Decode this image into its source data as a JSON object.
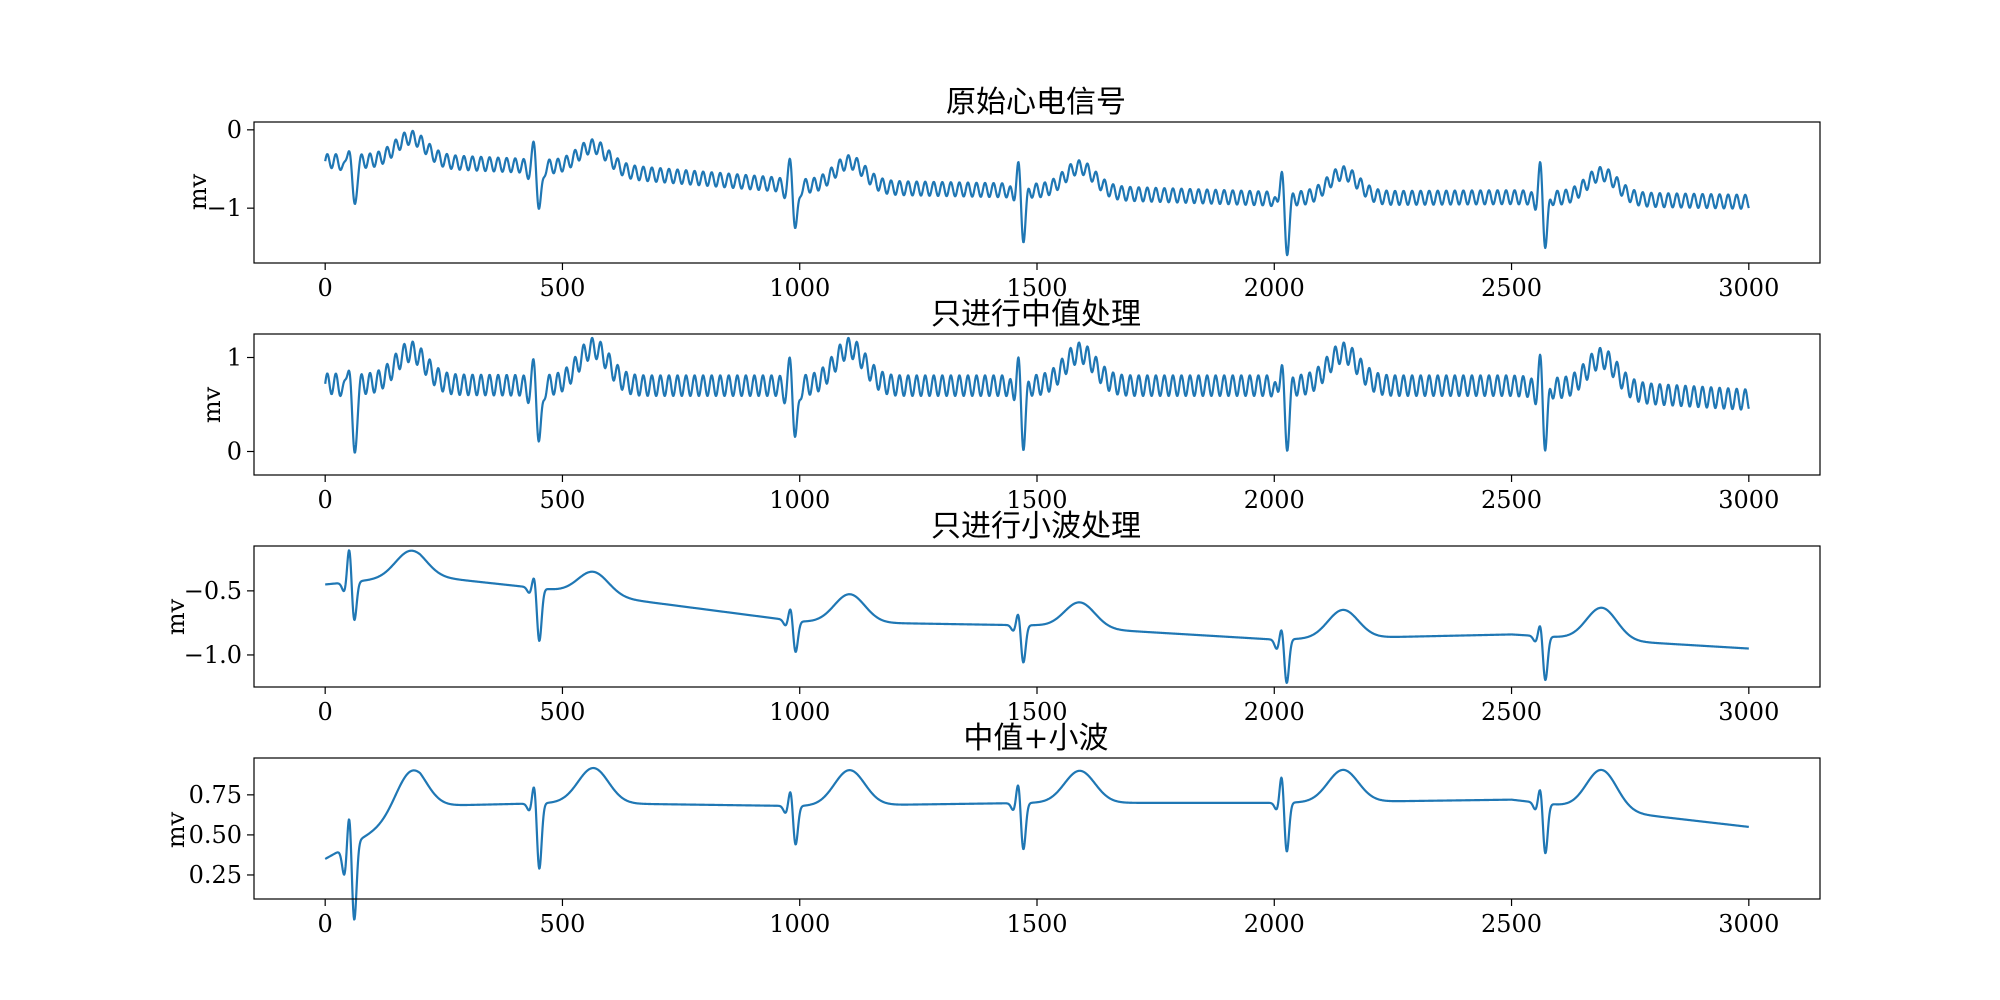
{
  "chart_data": [
    {
      "type": "line",
      "title": "原始心电信号",
      "xlabel": "",
      "ylabel": "mv",
      "xlim": [
        -150,
        3150
      ],
      "ylim": [
        -1.7,
        0.1
      ],
      "xticks": [
        0,
        500,
        1000,
        1500,
        2000,
        2500,
        3000
      ],
      "xtick_labels": [
        "0",
        "500",
        "1000",
        "1500",
        "2000",
        "2500",
        "3000"
      ],
      "yticks": [
        0,
        -1
      ],
      "ytick_labels": [
        "0",
        "−1"
      ],
      "grid": false,
      "line_color": "#1f77b4",
      "noise": {
        "amplitude": 0.09,
        "period": 18
      },
      "beats": [
        {
          "x": 55,
          "r": 0.3,
          "q": -0.12,
          "s": -0.6,
          "t": 0.3,
          "t_offset": 125
        },
        {
          "x": 445,
          "r": 0.35,
          "q": -0.1,
          "s": -0.6,
          "t": 0.3,
          "t_offset": 120
        },
        {
          "x": 985,
          "r": 0.38,
          "q": -0.1,
          "s": -0.6,
          "t": 0.32,
          "t_offset": 120
        },
        {
          "x": 1465,
          "r": 0.38,
          "q": -0.1,
          "s": -0.6,
          "t": 0.32,
          "t_offset": 125
        },
        {
          "x": 2020,
          "r": 0.45,
          "q": -0.1,
          "s": -0.7,
          "t": 0.32,
          "t_offset": 125
        },
        {
          "x": 2565,
          "r": 0.45,
          "q": -0.1,
          "s": -0.6,
          "t": 0.32,
          "t_offset": 125
        }
      ],
      "baseline": {
        "x": [
          0,
          200,
          500,
          1000,
          1500,
          2000,
          2500,
          3000
        ],
        "y": [
          -0.4,
          -0.4,
          -0.48,
          -0.72,
          -0.78,
          -0.88,
          -0.86,
          -0.92
        ]
      },
      "series": [
        {
          "x_start": 0,
          "x_end": 3000
        }
      ]
    },
    {
      "type": "line",
      "title": "只进行中值处理",
      "xlabel": "",
      "ylabel": "mv",
      "xlim": [
        -150,
        3150
      ],
      "ylim": [
        -0.25,
        1.25
      ],
      "xticks": [
        0,
        500,
        1000,
        1500,
        2000,
        2500,
        3000
      ],
      "xtick_labels": [
        "0",
        "500",
        "1000",
        "1500",
        "2000",
        "2500",
        "3000"
      ],
      "yticks": [
        1,
        0
      ],
      "ytick_labels": [
        "1",
        "0"
      ],
      "grid": false,
      "line_color": "#1f77b4",
      "noise": {
        "amplitude": 0.11,
        "period": 18
      },
      "beats": [
        {
          "x": 55,
          "r": 0.35,
          "q": -0.1,
          "s": -0.8,
          "t": 0.35,
          "t_offset": 125
        },
        {
          "x": 445,
          "r": 0.3,
          "q": -0.1,
          "s": -0.65,
          "t": 0.4,
          "t_offset": 120
        },
        {
          "x": 985,
          "r": 0.32,
          "q": -0.1,
          "s": -0.6,
          "t": 0.4,
          "t_offset": 120
        },
        {
          "x": 1465,
          "r": 0.3,
          "q": -0.1,
          "s": -0.6,
          "t": 0.35,
          "t_offset": 125
        },
        {
          "x": 2020,
          "r": 0.32,
          "q": -0.1,
          "s": -0.65,
          "t": 0.35,
          "t_offset": 125
        },
        {
          "x": 2565,
          "r": 0.32,
          "q": -0.1,
          "s": -0.6,
          "t": 0.35,
          "t_offset": 125
        }
      ],
      "baseline": {
        "x": [
          0,
          500,
          1000,
          1500,
          2000,
          2500,
          3000
        ],
        "y": [
          0.72,
          0.7,
          0.7,
          0.7,
          0.7,
          0.7,
          0.55
        ]
      },
      "series": [
        {
          "x_start": 0,
          "x_end": 3000
        }
      ]
    },
    {
      "type": "line",
      "title": "只进行小波处理",
      "xlabel": "",
      "ylabel": "mv",
      "xlim": [
        -150,
        3150
      ],
      "ylim": [
        -1.25,
        -0.15
      ],
      "xticks": [
        0,
        500,
        1000,
        1500,
        2000,
        2500,
        3000
      ],
      "xtick_labels": [
        "0",
        "500",
        "1000",
        "1500",
        "2000",
        "2500",
        "3000"
      ],
      "yticks": [
        -0.5,
        -1.0
      ],
      "ytick_labels": [
        "−0.5",
        "−1.0"
      ],
      "grid": false,
      "line_color": "#1f77b4",
      "noise": {
        "amplitude": 0.0,
        "period": 18
      },
      "beats": [
        {
          "x": 55,
          "r": 0.3,
          "q": -0.08,
          "s": -0.32,
          "t": 0.2,
          "t_offset": 125
        },
        {
          "x": 445,
          "r": 0.12,
          "q": -0.05,
          "s": -0.42,
          "t": 0.18,
          "t_offset": 120
        },
        {
          "x": 985,
          "r": 0.12,
          "q": -0.05,
          "s": -0.25,
          "t": 0.22,
          "t_offset": 120
        },
        {
          "x": 1465,
          "r": 0.12,
          "q": -0.05,
          "s": -0.3,
          "t": 0.2,
          "t_offset": 125
        },
        {
          "x": 2020,
          "r": 0.12,
          "q": -0.08,
          "s": -0.35,
          "t": 0.22,
          "t_offset": 125
        },
        {
          "x": 2565,
          "r": 0.12,
          "q": -0.05,
          "s": -0.35,
          "t": 0.25,
          "t_offset": 125
        }
      ],
      "baseline": {
        "x": [
          0,
          200,
          500,
          1000,
          1500,
          2000,
          2500,
          3000
        ],
        "y": [
          -0.45,
          -0.38,
          -0.5,
          -0.74,
          -0.77,
          -0.88,
          -0.84,
          -0.95
        ]
      },
      "series": [
        {
          "x_start": 0,
          "x_end": 3000
        }
      ]
    },
    {
      "type": "line",
      "title": "中值+小波",
      "xlabel": "",
      "ylabel": "mv",
      "xlim": [
        -150,
        3150
      ],
      "ylim": [
        0.1,
        0.98
      ],
      "xticks": [
        0,
        500,
        1000,
        1500,
        2000,
        2500,
        3000
      ],
      "xtick_labels": [
        "0",
        "500",
        "1000",
        "1500",
        "2000",
        "2500",
        "3000"
      ],
      "yticks": [
        0.75,
        0.5,
        0.25
      ],
      "ytick_labels": [
        "0.75",
        "0.50",
        "0.25"
      ],
      "grid": false,
      "line_color": "#1f77b4",
      "noise": {
        "amplitude": 0.0,
        "period": 18
      },
      "beats": [
        {
          "x": 55,
          "r": 0.25,
          "q": -0.18,
          "s": -0.5,
          "t": 0.25,
          "t_offset": 125
        },
        {
          "x": 445,
          "r": 0.15,
          "q": -0.05,
          "s": -0.42,
          "t": 0.22,
          "t_offset": 120
        },
        {
          "x": 985,
          "r": 0.12,
          "q": -0.05,
          "s": -0.25,
          "t": 0.22,
          "t_offset": 120
        },
        {
          "x": 1465,
          "r": 0.15,
          "q": -0.05,
          "s": -0.3,
          "t": 0.2,
          "t_offset": 125
        },
        {
          "x": 2020,
          "r": 0.2,
          "q": -0.05,
          "s": -0.32,
          "t": 0.2,
          "t_offset": 125
        },
        {
          "x": 2565,
          "r": 0.12,
          "q": -0.05,
          "s": -0.32,
          "t": 0.25,
          "t_offset": 125
        }
      ],
      "baseline": {
        "x": [
          0,
          200,
          500,
          1000,
          1500,
          2000,
          2500,
          3000
        ],
        "y": [
          0.35,
          0.68,
          0.7,
          0.68,
          0.7,
          0.7,
          0.72,
          0.55
        ]
      },
      "series": [
        {
          "x_start": 0,
          "x_end": 3000
        }
      ]
    }
  ]
}
